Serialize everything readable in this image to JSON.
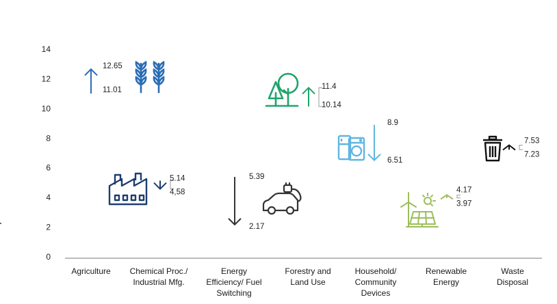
{
  "chart_data": {
    "type": "range-arrow",
    "title": "",
    "xlabel": "",
    "ylabel": "",
    "ylim": [
      0,
      14
    ],
    "yticks": [
      "0",
      "2",
      "4",
      "6",
      "8",
      "10",
      "12",
      "14"
    ],
    "grid": false,
    "categories": [
      {
        "label": [
          "Agriculture"
        ],
        "start": 11.01,
        "end": 12.65,
        "start_label": "11.01",
        "end_label": "12.65",
        "direction": "up",
        "color": "#2a6db5",
        "icon": "wheat-icon"
      },
      {
        "label": [
          "Chemical Proc./",
          "Industrial Mfg."
        ],
        "start": 5.14,
        "end": 4.58,
        "start_label": "5.14",
        "end_label": "4,58",
        "direction": "down",
        "color": "#1c3d6e",
        "icon": "factory-icon"
      },
      {
        "label": [
          "Energy",
          "Efficiency/ Fuel",
          "Switching"
        ],
        "start": 5.39,
        "end": 2.17,
        "start_label": "5.39",
        "end_label": "2.17",
        "direction": "down",
        "color": "#333333",
        "icon": "electric-car-icon"
      },
      {
        "label": [
          "Forestry and",
          "Land Use"
        ],
        "start": 10.14,
        "end": 11.4,
        "start_label": "10.14",
        "end_label": "11.4",
        "direction": "up",
        "color": "#1fa36b",
        "icon": "trees-icon"
      },
      {
        "label": [
          "Household/",
          "Community",
          "Devices"
        ],
        "start": 8.9,
        "end": 6.51,
        "start_label": "8.9",
        "end_label": "6.51",
        "direction": "down",
        "color": "#5fb6e0",
        "icon": "appliances-icon"
      },
      {
        "label": [
          "Renewable",
          "Energy"
        ],
        "start": 3.97,
        "end": 4.17,
        "start_label": "3.97",
        "end_label": "4.17",
        "direction": "up",
        "color": "#9cbd5a",
        "icon": "renewables-icon"
      },
      {
        "label": [
          "Waste",
          "Disposal"
        ],
        "start": 7.23,
        "end": 7.53,
        "start_label": "7.23",
        "end_label": "7.53",
        "direction": "up",
        "color": "#111111",
        "icon": "trash-bin-icon"
      }
    ]
  }
}
